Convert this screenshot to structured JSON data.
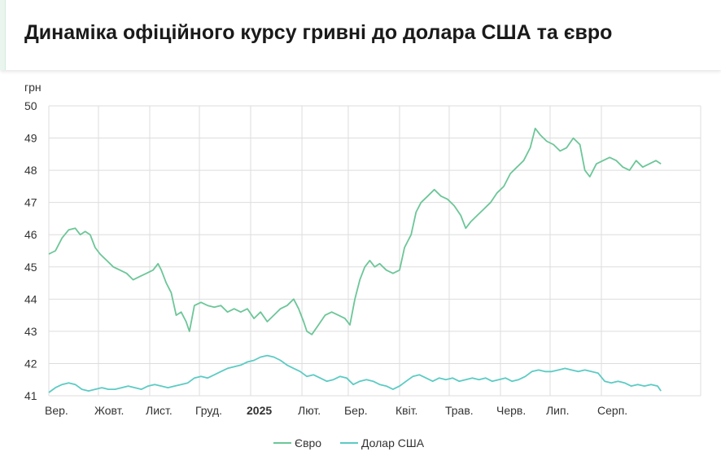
{
  "header": {
    "title": "Динаміка офіційного курсу гривні до долара США та євро"
  },
  "chart_data": {
    "type": "line",
    "title": "Динаміка офіційного курсу гривні до долара США та євро",
    "ylabel": "грн",
    "ylim": [
      41,
      50
    ],
    "yticks": [
      41,
      42,
      43,
      44,
      45,
      46,
      47,
      48,
      49,
      50
    ],
    "grid": true,
    "legend_position": "bottom-center",
    "x_range": [
      "2024-09-01",
      "2025-09-30"
    ],
    "xticks": [
      {
        "date": "2024-09-01",
        "label": "Вер.",
        "bold": false
      },
      {
        "date": "2024-10-01",
        "label": "Жовт.",
        "bold": false
      },
      {
        "date": "2024-11-01",
        "label": "Лист.",
        "bold": false
      },
      {
        "date": "2024-12-01",
        "label": "Груд.",
        "bold": false
      },
      {
        "date": "2025-01-01",
        "label": "2025",
        "bold": true
      },
      {
        "date": "2025-02-01",
        "label": "Лют.",
        "bold": false
      },
      {
        "date": "2025-03-01",
        "label": "Бер.",
        "bold": false
      },
      {
        "date": "2025-04-01",
        "label": "Квіт.",
        "bold": false
      },
      {
        "date": "2025-05-01",
        "label": "Трав.",
        "bold": false
      },
      {
        "date": "2025-06-01",
        "label": "Черв.",
        "bold": false
      },
      {
        "date": "2025-07-01",
        "label": "Лип.",
        "bold": false
      },
      {
        "date": "2025-08-01",
        "label": "Серп.",
        "bold": false
      }
    ],
    "series": [
      {
        "name": "Євро",
        "color": "#6cc698",
        "points": [
          [
            "2024-09-01",
            45.4
          ],
          [
            "2024-09-05",
            45.5
          ],
          [
            "2024-09-09",
            45.9
          ],
          [
            "2024-09-13",
            46.15
          ],
          [
            "2024-09-17",
            46.2
          ],
          [
            "2024-09-20",
            46.0
          ],
          [
            "2024-09-23",
            46.1
          ],
          [
            "2024-09-26",
            46.0
          ],
          [
            "2024-09-29",
            45.6
          ],
          [
            "2024-10-02",
            45.4
          ],
          [
            "2024-10-06",
            45.2
          ],
          [
            "2024-10-10",
            45.0
          ],
          [
            "2024-10-14",
            44.9
          ],
          [
            "2024-10-18",
            44.8
          ],
          [
            "2024-10-22",
            44.6
          ],
          [
            "2024-10-26",
            44.7
          ],
          [
            "2024-10-30",
            44.8
          ],
          [
            "2024-11-03",
            44.9
          ],
          [
            "2024-11-06",
            45.1
          ],
          [
            "2024-11-08",
            44.9
          ],
          [
            "2024-11-11",
            44.5
          ],
          [
            "2024-11-14",
            44.2
          ],
          [
            "2024-11-17",
            43.5
          ],
          [
            "2024-11-20",
            43.6
          ],
          [
            "2024-11-23",
            43.3
          ],
          [
            "2024-11-25",
            43.0
          ],
          [
            "2024-11-28",
            43.8
          ],
          [
            "2024-12-02",
            43.9
          ],
          [
            "2024-12-06",
            43.8
          ],
          [
            "2024-12-10",
            43.75
          ],
          [
            "2024-12-14",
            43.8
          ],
          [
            "2024-12-18",
            43.6
          ],
          [
            "2024-12-22",
            43.7
          ],
          [
            "2024-12-26",
            43.6
          ],
          [
            "2024-12-30",
            43.7
          ],
          [
            "2025-01-03",
            43.4
          ],
          [
            "2025-01-07",
            43.6
          ],
          [
            "2025-01-11",
            43.3
          ],
          [
            "2025-01-15",
            43.5
          ],
          [
            "2025-01-19",
            43.7
          ],
          [
            "2025-01-23",
            43.8
          ],
          [
            "2025-01-27",
            44.0
          ],
          [
            "2025-01-30",
            43.7
          ],
          [
            "2025-02-02",
            43.3
          ],
          [
            "2025-02-04",
            43.0
          ],
          [
            "2025-02-07",
            42.9
          ],
          [
            "2025-02-11",
            43.2
          ],
          [
            "2025-02-15",
            43.5
          ],
          [
            "2025-02-19",
            43.6
          ],
          [
            "2025-02-23",
            43.5
          ],
          [
            "2025-02-27",
            43.4
          ],
          [
            "2025-03-02",
            43.2
          ],
          [
            "2025-03-05",
            44.0
          ],
          [
            "2025-03-08",
            44.6
          ],
          [
            "2025-03-11",
            45.0
          ],
          [
            "2025-03-14",
            45.2
          ],
          [
            "2025-03-17",
            45.0
          ],
          [
            "2025-03-20",
            45.1
          ],
          [
            "2025-03-24",
            44.9
          ],
          [
            "2025-03-28",
            44.8
          ],
          [
            "2025-04-01",
            44.9
          ],
          [
            "2025-04-04",
            45.6
          ],
          [
            "2025-04-08",
            46.0
          ],
          [
            "2025-04-11",
            46.7
          ],
          [
            "2025-04-14",
            47.0
          ],
          [
            "2025-04-18",
            47.2
          ],
          [
            "2025-04-22",
            47.4
          ],
          [
            "2025-04-26",
            47.2
          ],
          [
            "2025-04-30",
            47.1
          ],
          [
            "2025-05-04",
            46.9
          ],
          [
            "2025-05-08",
            46.6
          ],
          [
            "2025-05-11",
            46.2
          ],
          [
            "2025-05-14",
            46.4
          ],
          [
            "2025-05-18",
            46.6
          ],
          [
            "2025-05-22",
            46.8
          ],
          [
            "2025-05-26",
            47.0
          ],
          [
            "2025-05-30",
            47.3
          ],
          [
            "2025-06-03",
            47.5
          ],
          [
            "2025-06-07",
            47.9
          ],
          [
            "2025-06-11",
            48.1
          ],
          [
            "2025-06-15",
            48.3
          ],
          [
            "2025-06-19",
            48.7
          ],
          [
            "2025-06-22",
            49.3
          ],
          [
            "2025-06-25",
            49.1
          ],
          [
            "2025-06-29",
            48.9
          ],
          [
            "2025-07-03",
            48.8
          ],
          [
            "2025-07-07",
            48.6
          ],
          [
            "2025-07-11",
            48.7
          ],
          [
            "2025-07-15",
            49.0
          ],
          [
            "2025-07-19",
            48.8
          ],
          [
            "2025-07-22",
            48.0
          ],
          [
            "2025-07-25",
            47.8
          ],
          [
            "2025-07-29",
            48.2
          ],
          [
            "2025-08-02",
            48.3
          ],
          [
            "2025-08-06",
            48.4
          ],
          [
            "2025-08-10",
            48.3
          ],
          [
            "2025-08-14",
            48.1
          ],
          [
            "2025-08-18",
            48.0
          ],
          [
            "2025-08-22",
            48.3
          ],
          [
            "2025-08-26",
            48.1
          ],
          [
            "2025-08-30",
            48.2
          ],
          [
            "2025-09-03",
            48.3
          ],
          [
            "2025-09-06",
            48.2
          ]
        ]
      },
      {
        "name": "Долар США",
        "color": "#5ccbc4",
        "points": [
          [
            "2024-09-01",
            41.1
          ],
          [
            "2024-09-05",
            41.25
          ],
          [
            "2024-09-09",
            41.35
          ],
          [
            "2024-09-13",
            41.4
          ],
          [
            "2024-09-17",
            41.35
          ],
          [
            "2024-09-21",
            41.2
          ],
          [
            "2024-09-25",
            41.15
          ],
          [
            "2024-09-29",
            41.2
          ],
          [
            "2024-10-03",
            41.25
          ],
          [
            "2024-10-07",
            41.2
          ],
          [
            "2024-10-11",
            41.2
          ],
          [
            "2024-10-15",
            41.25
          ],
          [
            "2024-10-19",
            41.3
          ],
          [
            "2024-10-23",
            41.25
          ],
          [
            "2024-10-27",
            41.2
          ],
          [
            "2024-10-31",
            41.3
          ],
          [
            "2024-11-04",
            41.35
          ],
          [
            "2024-11-08",
            41.3
          ],
          [
            "2024-11-12",
            41.25
          ],
          [
            "2024-11-16",
            41.3
          ],
          [
            "2024-11-20",
            41.35
          ],
          [
            "2024-11-24",
            41.4
          ],
          [
            "2024-11-28",
            41.55
          ],
          [
            "2024-12-02",
            41.6
          ],
          [
            "2024-12-06",
            41.55
          ],
          [
            "2024-12-10",
            41.65
          ],
          [
            "2024-12-14",
            41.75
          ],
          [
            "2024-12-18",
            41.85
          ],
          [
            "2024-12-22",
            41.9
          ],
          [
            "2024-12-26",
            41.95
          ],
          [
            "2024-12-30",
            42.05
          ],
          [
            "2025-01-03",
            42.1
          ],
          [
            "2025-01-07",
            42.2
          ],
          [
            "2025-01-11",
            42.25
          ],
          [
            "2025-01-15",
            42.2
          ],
          [
            "2025-01-19",
            42.1
          ],
          [
            "2025-01-23",
            41.95
          ],
          [
            "2025-01-27",
            41.85
          ],
          [
            "2025-01-31",
            41.75
          ],
          [
            "2025-02-04",
            41.6
          ],
          [
            "2025-02-08",
            41.65
          ],
          [
            "2025-02-12",
            41.55
          ],
          [
            "2025-02-16",
            41.45
          ],
          [
            "2025-02-20",
            41.5
          ],
          [
            "2025-02-24",
            41.6
          ],
          [
            "2025-02-28",
            41.55
          ],
          [
            "2025-03-04",
            41.35
          ],
          [
            "2025-03-08",
            41.45
          ],
          [
            "2025-03-12",
            41.5
          ],
          [
            "2025-03-16",
            41.45
          ],
          [
            "2025-03-20",
            41.35
          ],
          [
            "2025-03-24",
            41.3
          ],
          [
            "2025-03-28",
            41.2
          ],
          [
            "2025-04-01",
            41.3
          ],
          [
            "2025-04-05",
            41.45
          ],
          [
            "2025-04-09",
            41.6
          ],
          [
            "2025-04-13",
            41.65
          ],
          [
            "2025-04-17",
            41.55
          ],
          [
            "2025-04-21",
            41.45
          ],
          [
            "2025-04-25",
            41.55
          ],
          [
            "2025-04-29",
            41.5
          ],
          [
            "2025-05-03",
            41.55
          ],
          [
            "2025-05-07",
            41.45
          ],
          [
            "2025-05-11",
            41.5
          ],
          [
            "2025-05-15",
            41.55
          ],
          [
            "2025-05-19",
            41.5
          ],
          [
            "2025-05-23",
            41.55
          ],
          [
            "2025-05-27",
            41.45
          ],
          [
            "2025-05-31",
            41.5
          ],
          [
            "2025-06-04",
            41.55
          ],
          [
            "2025-06-08",
            41.45
          ],
          [
            "2025-06-12",
            41.5
          ],
          [
            "2025-06-16",
            41.6
          ],
          [
            "2025-06-20",
            41.75
          ],
          [
            "2025-06-24",
            41.8
          ],
          [
            "2025-06-28",
            41.75
          ],
          [
            "2025-07-02",
            41.75
          ],
          [
            "2025-07-06",
            41.8
          ],
          [
            "2025-07-10",
            41.85
          ],
          [
            "2025-07-14",
            41.8
          ],
          [
            "2025-07-18",
            41.75
          ],
          [
            "2025-07-22",
            41.8
          ],
          [
            "2025-07-26",
            41.75
          ],
          [
            "2025-07-30",
            41.7
          ],
          [
            "2025-08-03",
            41.45
          ],
          [
            "2025-08-07",
            41.4
          ],
          [
            "2025-08-11",
            41.45
          ],
          [
            "2025-08-15",
            41.4
          ],
          [
            "2025-08-19",
            41.3
          ],
          [
            "2025-08-23",
            41.35
          ],
          [
            "2025-08-27",
            41.3
          ],
          [
            "2025-08-31",
            41.35
          ],
          [
            "2025-09-04",
            41.3
          ],
          [
            "2025-09-06",
            41.15
          ]
        ]
      }
    ]
  }
}
